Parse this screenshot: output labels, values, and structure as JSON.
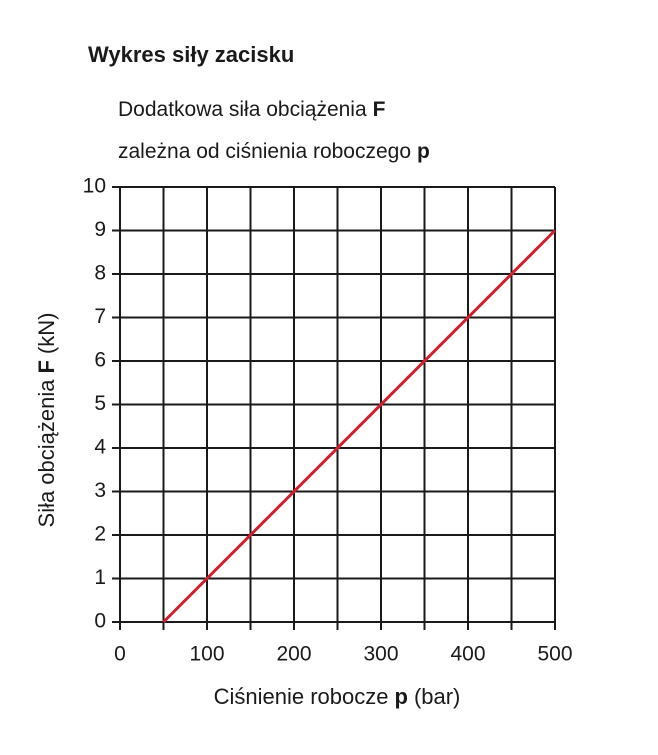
{
  "chart_data": {
    "type": "line",
    "title": "Wykres siły zacisku",
    "subtitle": [
      [
        "Dodatkowa siła obciążenia",
        "F"
      ],
      [
        "zależna od ciśnienia roboczego",
        "p"
      ]
    ],
    "xlabel": [
      "Ciśnienie robocze",
      "p",
      "(bar)"
    ],
    "ylabel": [
      "Siła obciążenia",
      "F",
      "(kN)"
    ],
    "x": [
      50,
      500
    ],
    "series": [
      {
        "color": "#d0202e",
        "values": [
          0,
          9
        ]
      }
    ],
    "xlim": [
      0,
      500
    ],
    "xticks": [
      0,
      100,
      200,
      300,
      400,
      500
    ],
    "xminor": [
      50,
      150,
      250,
      350,
      450
    ],
    "ylim": [
      0,
      10
    ],
    "yticks": [
      0,
      1,
      2,
      3,
      4,
      5,
      6,
      7,
      8,
      9,
      10
    ],
    "grid": true
  }
}
